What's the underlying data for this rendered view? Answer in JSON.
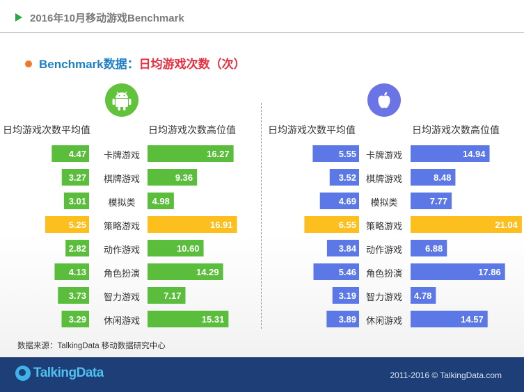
{
  "header": {
    "title": "2016年10月移动游戏Benchmark"
  },
  "subtitle": {
    "part_a": "Benchmark数据：",
    "part_b": "日均游戏次数（次）"
  },
  "icons": {
    "android": "android-icon",
    "ios": "apple-icon"
  },
  "colors": {
    "android": "#5abd3b",
    "ios": "#5b78e6",
    "highlight": "#fdbf1e",
    "accent_blue": "#1f7fc7",
    "accent_red": "#ec2d3c"
  },
  "headers": {
    "android_avg": "日均游戏次数平均值",
    "android_high": "日均游戏次数高位值",
    "ios_avg": "日均游戏次数平均值",
    "ios_high": "日均游戏次数高位值"
  },
  "chart_data": {
    "type": "bar",
    "categories": [
      "卡牌游戏",
      "棋牌游戏",
      "模拟类",
      "策略游戏",
      "动作游戏",
      "角色扮演",
      "智力游戏",
      "休闲游戏"
    ],
    "highlight_category": "策略游戏",
    "groups": [
      {
        "platform": "Android",
        "series": [
          {
            "name": "日均游戏次数平均值",
            "values": [
              4.47,
              3.27,
              3.01,
              5.25,
              2.82,
              4.13,
              3.73,
              3.29
            ]
          },
          {
            "name": "日均游戏次数高位值",
            "values": [
              16.27,
              9.36,
              4.98,
              16.91,
              10.6,
              14.29,
              7.17,
              15.31
            ]
          }
        ]
      },
      {
        "platform": "iOS",
        "series": [
          {
            "name": "日均游戏次数平均值",
            "values": [
              5.55,
              3.52,
              4.69,
              6.55,
              3.84,
              5.46,
              3.19,
              3.89
            ]
          },
          {
            "name": "日均游戏次数高位值",
            "values": [
              14.94,
              8.48,
              7.77,
              21.04,
              6.88,
              17.86,
              4.78,
              14.57
            ]
          }
        ]
      }
    ]
  },
  "source": "数据来源：TalkingData 移动数据研究中心",
  "footer": {
    "logo_text": "TalkingData",
    "copyright": "2011-2016 © TalkingData.com"
  }
}
